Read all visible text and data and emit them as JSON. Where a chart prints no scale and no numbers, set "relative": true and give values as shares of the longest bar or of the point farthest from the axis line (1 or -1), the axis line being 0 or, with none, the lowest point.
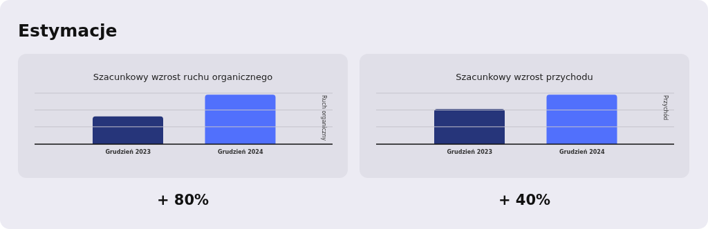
{
  "chart_data": [
    {
      "type": "bar",
      "title": "Szacunkowy wzrost ruchu organicznego",
      "ylabel": "Ruch organiczny",
      "categories": [
        "Grudzień 2023",
        "Grudzień 2024"
      ],
      "values": [
        0.56,
        1
      ],
      "colors": [
        "#26357a",
        "#5170fc"
      ],
      "relative": true,
      "ref_lines": [
        {
          "axis": "y",
          "value": 0.35,
          "color": "#c4c3cc"
        },
        {
          "axis": "y",
          "value": 0.69,
          "color": "#c4c3cc"
        },
        {
          "axis": "y",
          "value": 1.03,
          "color": "#c4c3cc"
        }
      ],
      "annotations": [
        "Estymacje",
        "+ 80%"
      ]
    },
    {
      "type": "bar",
      "title": "Szacunkowy wzrost przychodu",
      "ylabel": "Przychód",
      "categories": [
        "Grudzień 2023",
        "Grudzień 2024"
      ],
      "values": [
        0.71,
        1
      ],
      "colors": [
        "#26357a",
        "#5170fc"
      ],
      "relative": true,
      "ref_lines": [
        {
          "axis": "y",
          "value": 0.35,
          "color": "#c4c3cc"
        },
        {
          "axis": "y",
          "value": 0.69,
          "color": "#c4c3cc"
        },
        {
          "axis": "y",
          "value": 1.03,
          "color": "#c4c3cc"
        }
      ],
      "annotations": [
        "+ 40%"
      ]
    }
  ]
}
